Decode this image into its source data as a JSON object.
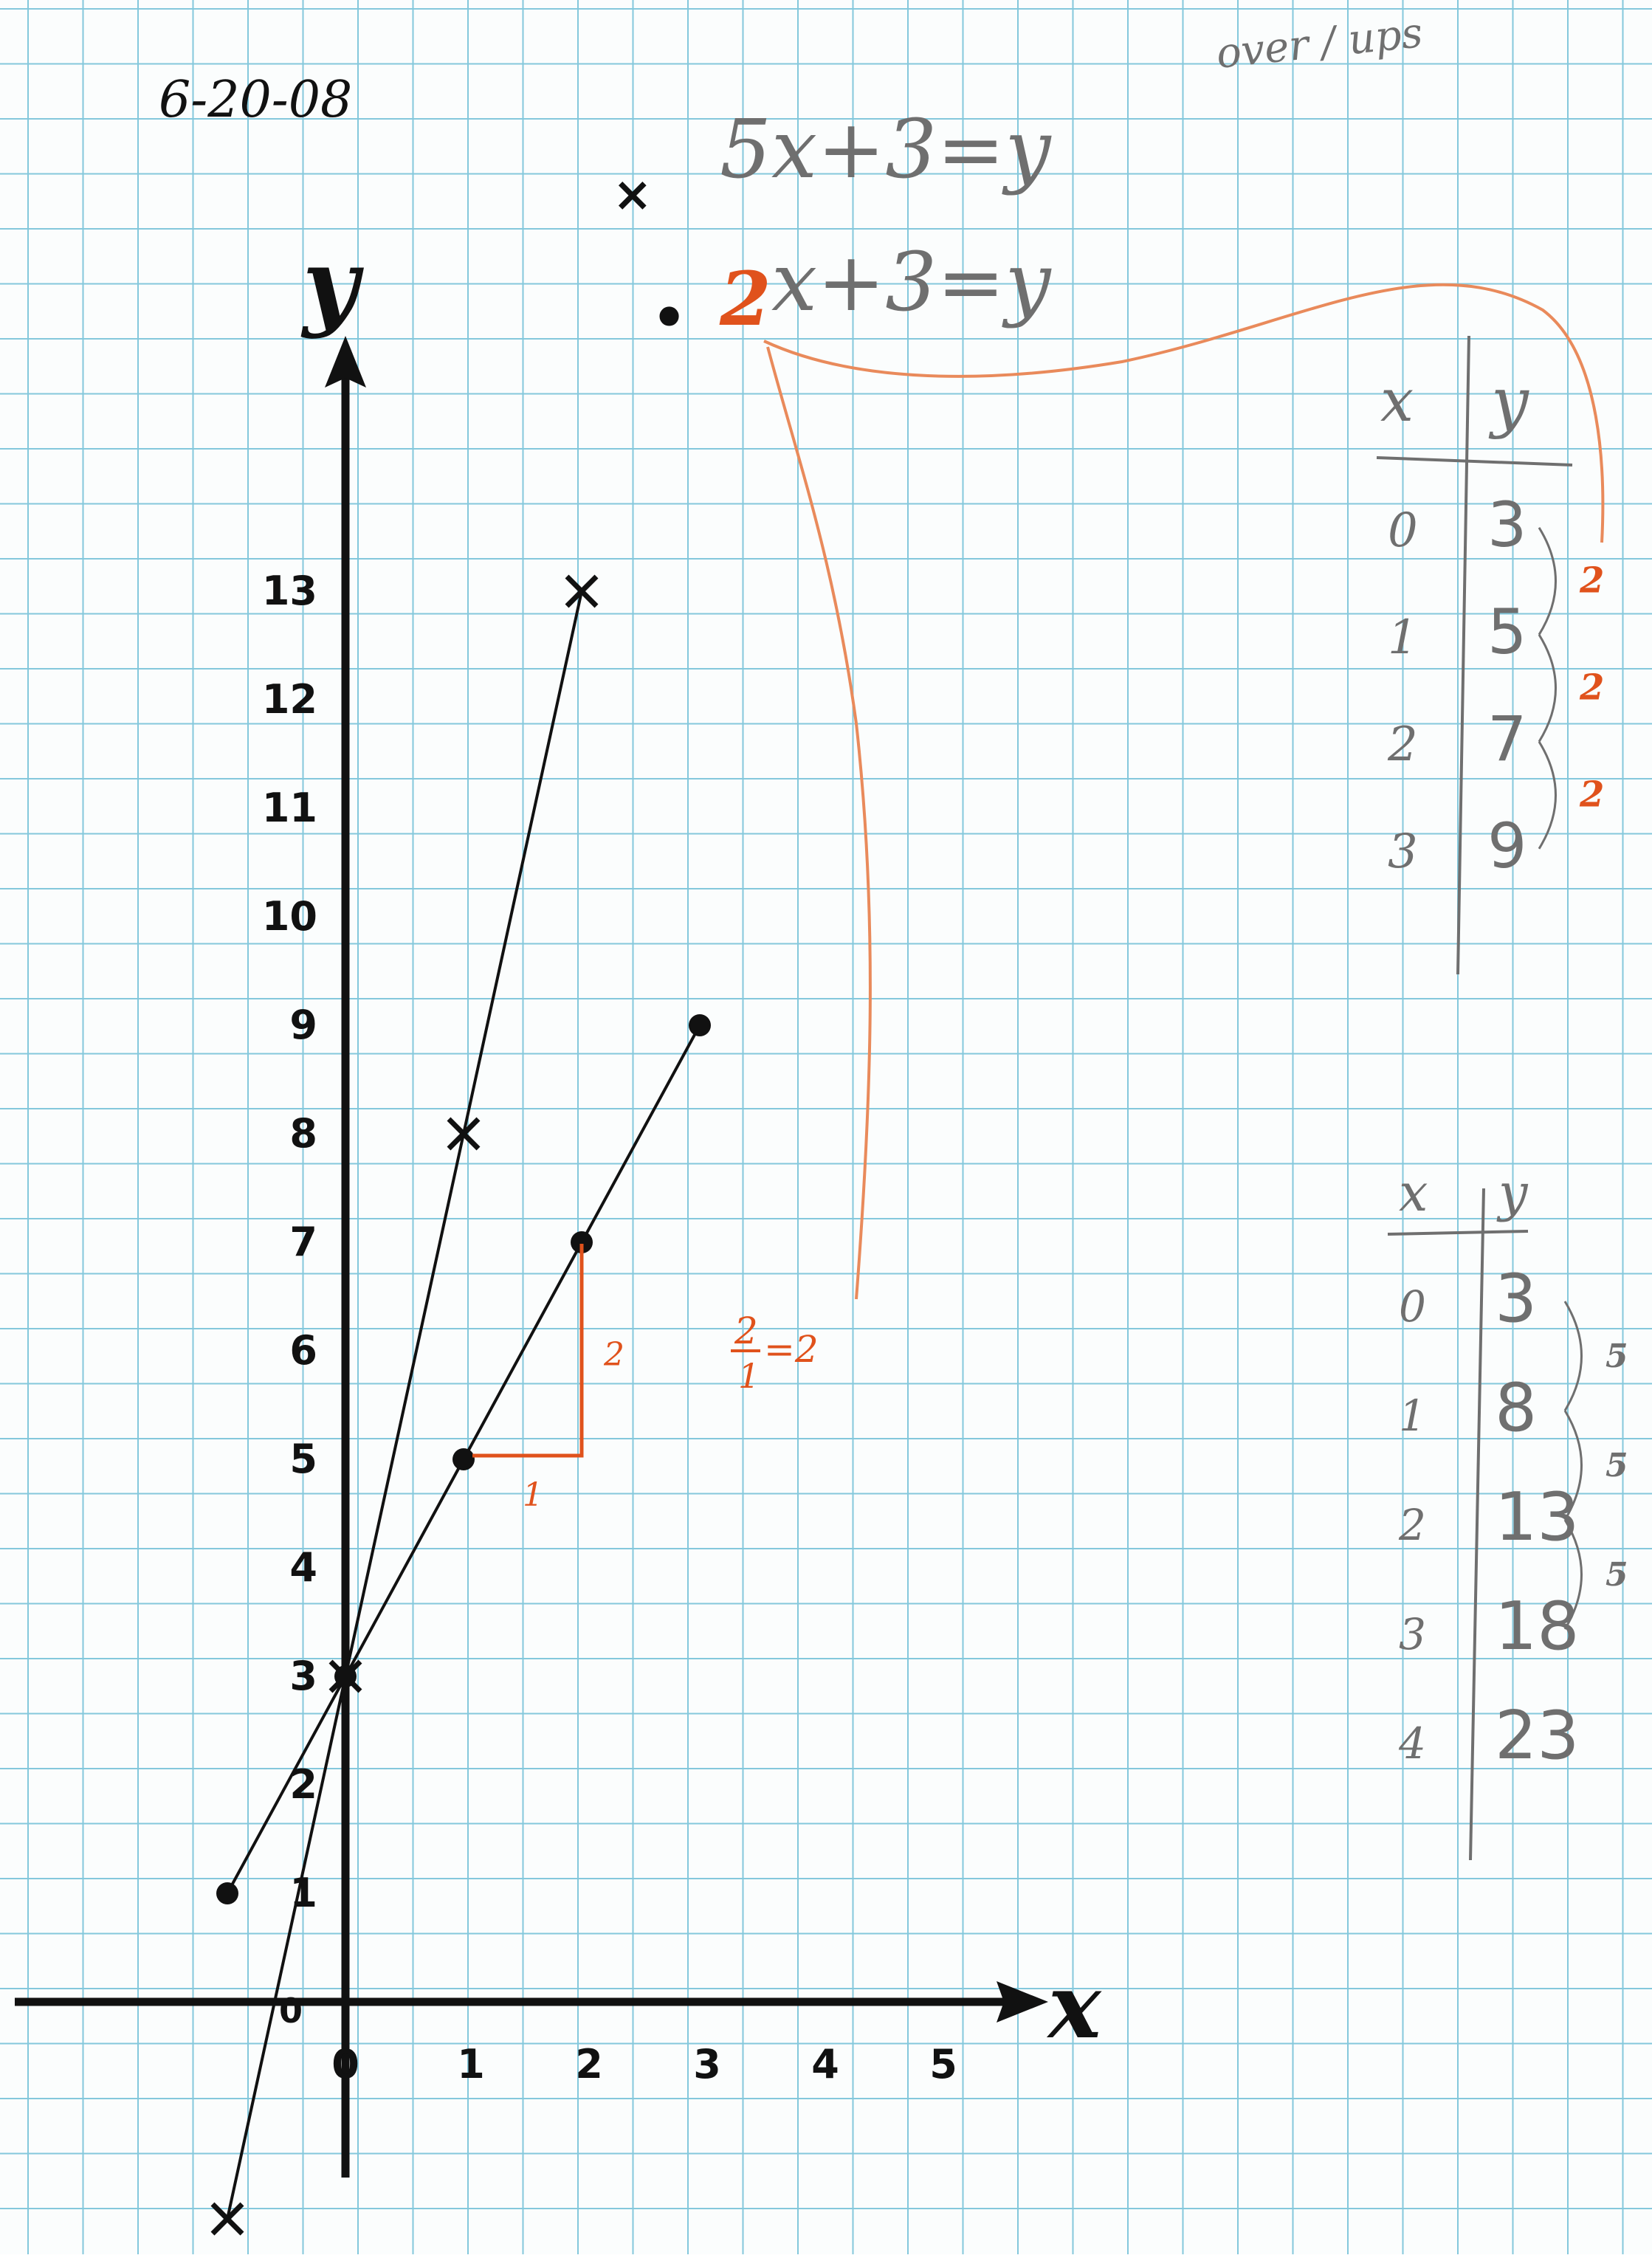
{
  "date": "6-20-08",
  "corner_note": "over / ups",
  "colors": {
    "grid": "#84c8dc",
    "ink": "#111111",
    "pencil": "#6f6f6f",
    "orange": "#e0521c",
    "paper": "#fbfdfd"
  },
  "equations": [
    {
      "marker": "×",
      "text": "5x+3=y"
    },
    {
      "marker": "•",
      "coefficient": "2",
      "text": "x+3=y"
    }
  ],
  "slope_triangle": {
    "run": "1",
    "rise": "2",
    "ratio_numerator": "2",
    "ratio_denominator": "1",
    "ratio_result": "=2"
  },
  "chart_data": {
    "type": "line",
    "xlabel": "x",
    "ylabel": "y",
    "xlim": [
      -1,
      5
    ],
    "ylim": [
      -2,
      13
    ],
    "x_ticks": [
      "0",
      "1",
      "2",
      "3",
      "4",
      "5"
    ],
    "y_ticks": [
      "1",
      "2",
      "3",
      "4",
      "5",
      "6",
      "7",
      "8",
      "9",
      "10",
      "11",
      "12",
      "13"
    ],
    "origin_label": "0",
    "series": [
      {
        "marker": "x",
        "x": [
          -1,
          0,
          1,
          2
        ],
        "y": [
          -2,
          3,
          8,
          13
        ]
      },
      {
        "marker": "dot",
        "x": [
          -1,
          0,
          1,
          2,
          3
        ],
        "y": [
          1,
          3,
          5,
          7,
          9
        ]
      }
    ]
  },
  "tables": [
    {
      "headers": [
        "x",
        "y"
      ],
      "rows": [
        [
          "0",
          "3"
        ],
        [
          "1",
          "5"
        ],
        [
          "2",
          "7"
        ],
        [
          "3",
          "9"
        ]
      ],
      "differences": [
        "2",
        "2",
        "2"
      ]
    },
    {
      "headers": [
        "x",
        "y"
      ],
      "rows": [
        [
          "0",
          "3"
        ],
        [
          "1",
          "8"
        ],
        [
          "2",
          "13"
        ],
        [
          "3",
          "18"
        ],
        [
          "4",
          "23"
        ]
      ],
      "differences": [
        "5",
        "5",
        "5"
      ]
    }
  ]
}
